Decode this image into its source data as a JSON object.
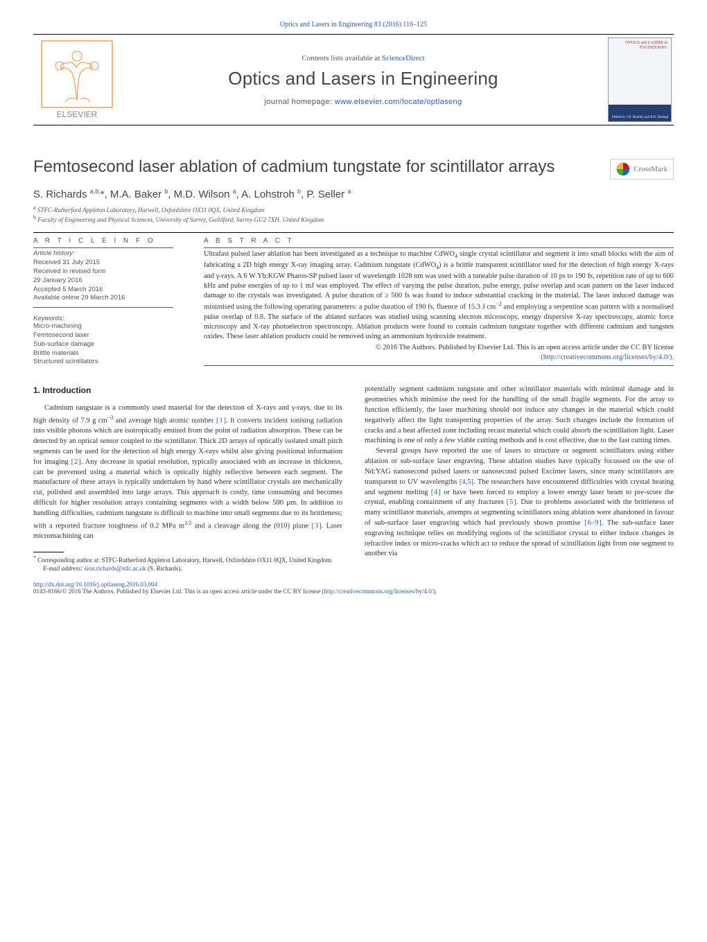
{
  "top_link": "Optics and Lasers in Engineering 83 (2016) 116–125",
  "masthead": {
    "sd_prefix": "Contents lists available at ",
    "sd_link": "ScienceDirect",
    "journal_name": "Optics and Lasers in Engineering",
    "homepage_prefix": "journal homepage: ",
    "homepage_link": "www.elsevier.com/locate/optlaseng",
    "cover_title": "OPTICS and LASERS\nin ENGINEERING",
    "cover_eds": "Edited by\nJ.R. Huntley and R.K. Rastogi"
  },
  "title": "Femtosecond laser ablation of cadmium tungstate for scintillator arrays",
  "crossmark_label": "CrossMark",
  "authors_html": "S. Richards <sup>a,b,</sup><span class='star'>*</span>, M.A. Baker <sup>b</sup>, M.D. Wilson <sup>a</sup>, A. Lohstroh <sup>b</sup>, P. Seller <sup>a</sup>",
  "affiliations": [
    "a STFC-Rutherford Appleton Laboratory, Harwell, Oxfordshire OX11 0QX, United Kingdom",
    "b Faculty of Engineering and Physical Sciences, University of Surrey, Guildford, Surrey GU2 7XH, United Kingdom"
  ],
  "info_heading": "A R T I C L E  I N F O",
  "abstract_heading": "A B S T R A C T",
  "history": {
    "h_head": "Article history:",
    "lines": [
      "Received 31 July 2015",
      "Received in revised form",
      "29 January 2016",
      "Accepted 5 March 2016",
      "Available online 29 March 2016"
    ]
  },
  "keywords_head": "Keywords:",
  "keywords": [
    "Micro-machining",
    "Femtosecond laser",
    "Sub-surface damage",
    "Brittle materials",
    "Structured scintillators"
  ],
  "abstract": "Ultrafast pulsed laser ablation has been investigated as a technique to machine CdWO4 single crystal scintillator and segment it into small blocks with the aim of fabricating a 2D high energy X-ray imaging array. Cadmium tungstate (CdWO4) is a brittle transparent scintillator used for the detection of high energy X-rays and γ-rays. A 6 W Yb:KGW Pharos-SP pulsed laser of wavelength 1028 nm was used with a tuneable pulse duration of 10 ps to 190 fs, repetition rate of up to 600 kHz and pulse energies of up to 1 mJ was employed. The effect of varying the pulse duration, pulse energy, pulse overlap and scan pattern on the laser induced damage to the crystals was investigated. A pulse duration of ≥ 500 fs was found to induce substantial cracking in the material. The laser induced damage was minimised using the following operating parameters: a pulse duration of 190 fs, fluence of 15.3 J cm−2 and employing a serpentine scan pattern with a normalised pulse overlap of 0.8. The surface of the ablated surfaces was studied using scanning electron microscopy, energy dispersive X-ray spectroscopy, atomic force microscopy and X-ray photoelectron spectroscopy. Ablation products were found to contain cadmium tungstate together with different cadmium and tungsten oxides. These laser ablation products could be removed using an ammonium hydroxide treatment.",
  "copyright": "© 2016 The Authors. Published by Elsevier Ltd. This is an open access article under the CC BY license",
  "cc_link": "(http://creativecommons.org/licenses/by/4.0/).",
  "section1_head": "1.  Introduction",
  "col_left_p1": "Cadmium tungstate is a commonly used material for the detection of X-rays and γ-rays, due to its high density of 7.9 g cm−3 and average high atomic number [1]. It converts incident ionising radiation into visible photons which are isotropically emitted from the point of radiation absorption. These can be detected by an optical sensor coupled to the scintillator. Thick 2D arrays of optically isolated small pitch segments can be used for the detection of high energy X-rays whilst also giving positional information for imaging [2]. Any decrease in spatial resolution, typically associated with an increase in thickness, can be prevented using a material which is optically highly reflective between each segment. The manufacture of these arrays is typically undertaken by hand where scintillator crystals are mechanically cut, polished and assembled into large arrays. This approach is costly, time consuming and becomes difficult for higher resolution arrays containing segments with a width below 500 μm. In addition to handling difficulties, cadmium tungstate is difficult to machine into small segments due to its brittleness; with a reported fracture toughness of 0.2 MPa m1/2 and a cleavage along the (010) plane [3]. Laser micromachining can",
  "footnote_corr": "* Corresponding author at: STFC-Rutherford Appleton Laboratory, Harwell, Oxfordshire OX11 0QX, United Kingdom.",
  "footnote_email_label": "E-mail address: ",
  "footnote_email": "sion.richards@stfc.ac.uk",
  "footnote_email_tail": " (S. Richards).",
  "col_right_p1": "potentially segment cadmium tungstate and other scintillator materials with minimal damage and in geometries which minimise the need for the handling of the small fragile segments. For the array to function efficiently, the laser machining should not induce any changes in the material which could negatively affect the light transporting properties of the array. Such changes include the formation of cracks and a heat affected zone including recast material which could absorb the scintillation light. Laser machining is one of only a few viable cutting methods and is cost effective, due to the fast cutting times.",
  "col_right_p2": "Several groups have reported the use of lasers to structure or segment scintillators using either ablation or sub-surface laser engraving. These ablation studies have typically focussed on the use of Nd:YAG nanosecond pulsed lasers or nanosecond pulsed Excimer lasers, since many scintillators are transparent to UV wavelengths [4,5]. The researchers have encountered difficulties with crystal heating and segment melting [4] or have been forced to employ a lower energy laser beam to pre-score the crystal, enabling containment of any fractures [5]. Due to problems associated with the brittleness of many scintillator materials, attempts at segmenting scintillators using ablation were abandoned in favour of sub-surface laser engraving which had previously shown promise [6–9]. The sub-surface laser engraving technique relies on modifying regions of the scintillator crystal to either induce changes in refractive index or micro-cracks which act to reduce the spread of scintillation light from one segment to another via",
  "footer_doi": "http://dx.doi.org/10.1016/j.optlaseng.2016.03.004",
  "footer_issn": "0143-8166/© 2016 The Authors. Published by Elsevier Ltd. This is an open access article under the CC BY license (",
  "footer_cc": "http://creativecommons.org/licenses/by/4.0/",
  "footer_tail": ").",
  "colors": {
    "link": "#2a5db0",
    "text": "#333333",
    "heading": "#444444",
    "rule": "#000000",
    "elsevier_orange": "#ff6a00",
    "elsevier_text": "#888888",
    "cover_bg_top": "#f2f6fb",
    "cover_bg_bot": "#243d74",
    "cover_red": "#b33333"
  },
  "fonts": {
    "body_family": "Georgia, 'Times New Roman', serif",
    "sans_family": "Arial, Helvetica, sans-serif",
    "title_size_pt": 18,
    "journal_size_pt": 20,
    "body_size_pt": 8,
    "abstract_size_pt": 8
  }
}
